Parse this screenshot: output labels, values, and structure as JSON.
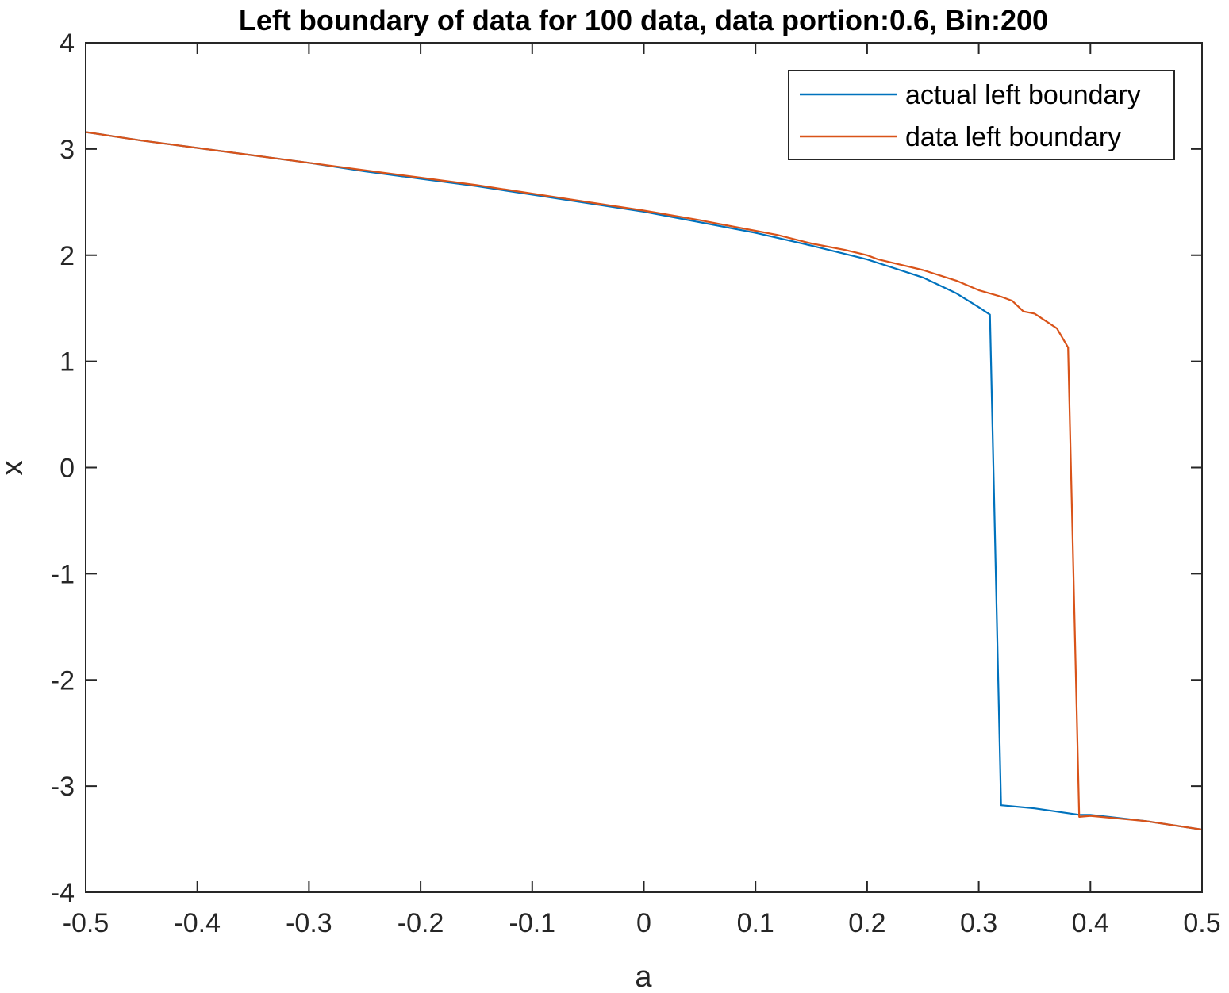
{
  "chart_data": {
    "type": "line",
    "title": "Left boundary of data for 100 data, data portion:0.6, Bin:200",
    "xlabel": "a",
    "ylabel": "x",
    "xlim": [
      -0.5,
      0.5
    ],
    "ylim": [
      -4,
      4
    ],
    "xticks": [
      "-0.5",
      "-0.4",
      "-0.3",
      "-0.2",
      "-0.1",
      "0",
      "0.1",
      "0.2",
      "0.3",
      "0.4",
      "0.5"
    ],
    "yticks": [
      "-4",
      "-3",
      "-2",
      "-1",
      "0",
      "1",
      "2",
      "3",
      "4"
    ],
    "grid": false,
    "box": true,
    "legend_position": "top-right",
    "series": [
      {
        "name": "actual left boundary",
        "color": "#0072BD",
        "points": [
          [
            -0.5,
            3.16
          ],
          [
            -0.45,
            3.08
          ],
          [
            -0.4,
            3.01
          ],
          [
            -0.35,
            2.94
          ],
          [
            -0.3,
            2.87
          ],
          [
            -0.25,
            2.79
          ],
          [
            -0.2,
            2.72
          ],
          [
            -0.15,
            2.65
          ],
          [
            -0.1,
            2.57
          ],
          [
            -0.05,
            2.49
          ],
          [
            0.0,
            2.41
          ],
          [
            0.05,
            2.31
          ],
          [
            0.1,
            2.21
          ],
          [
            0.15,
            2.09
          ],
          [
            0.2,
            1.96
          ],
          [
            0.25,
            1.79
          ],
          [
            0.28,
            1.64
          ],
          [
            0.3,
            1.51
          ],
          [
            0.31,
            1.44
          ],
          [
            0.32,
            -3.18
          ],
          [
            0.35,
            -3.21
          ],
          [
            0.39,
            -3.27
          ],
          [
            0.4,
            -3.27
          ],
          [
            0.45,
            -3.33
          ],
          [
            0.5,
            -3.41
          ]
        ]
      },
      {
        "name": "data left boundary",
        "color": "#D95319",
        "points": [
          [
            -0.5,
            3.16
          ],
          [
            -0.45,
            3.08
          ],
          [
            -0.4,
            3.01
          ],
          [
            -0.35,
            2.94
          ],
          [
            -0.3,
            2.87
          ],
          [
            -0.25,
            2.8
          ],
          [
            -0.2,
            2.73
          ],
          [
            -0.15,
            2.66
          ],
          [
            -0.1,
            2.58
          ],
          [
            -0.05,
            2.5
          ],
          [
            0.0,
            2.42
          ],
          [
            0.05,
            2.33
          ],
          [
            0.1,
            2.23
          ],
          [
            0.12,
            2.19
          ],
          [
            0.15,
            2.11
          ],
          [
            0.18,
            2.05
          ],
          [
            0.2,
            2.0
          ],
          [
            0.21,
            1.96
          ],
          [
            0.25,
            1.86
          ],
          [
            0.28,
            1.76
          ],
          [
            0.3,
            1.67
          ],
          [
            0.32,
            1.61
          ],
          [
            0.33,
            1.57
          ],
          [
            0.34,
            1.47
          ],
          [
            0.35,
            1.45
          ],
          [
            0.37,
            1.31
          ],
          [
            0.38,
            1.13
          ],
          [
            0.39,
            -3.29
          ],
          [
            0.4,
            -3.28
          ],
          [
            0.45,
            -3.33
          ],
          [
            0.5,
            -3.41
          ]
        ]
      }
    ]
  }
}
